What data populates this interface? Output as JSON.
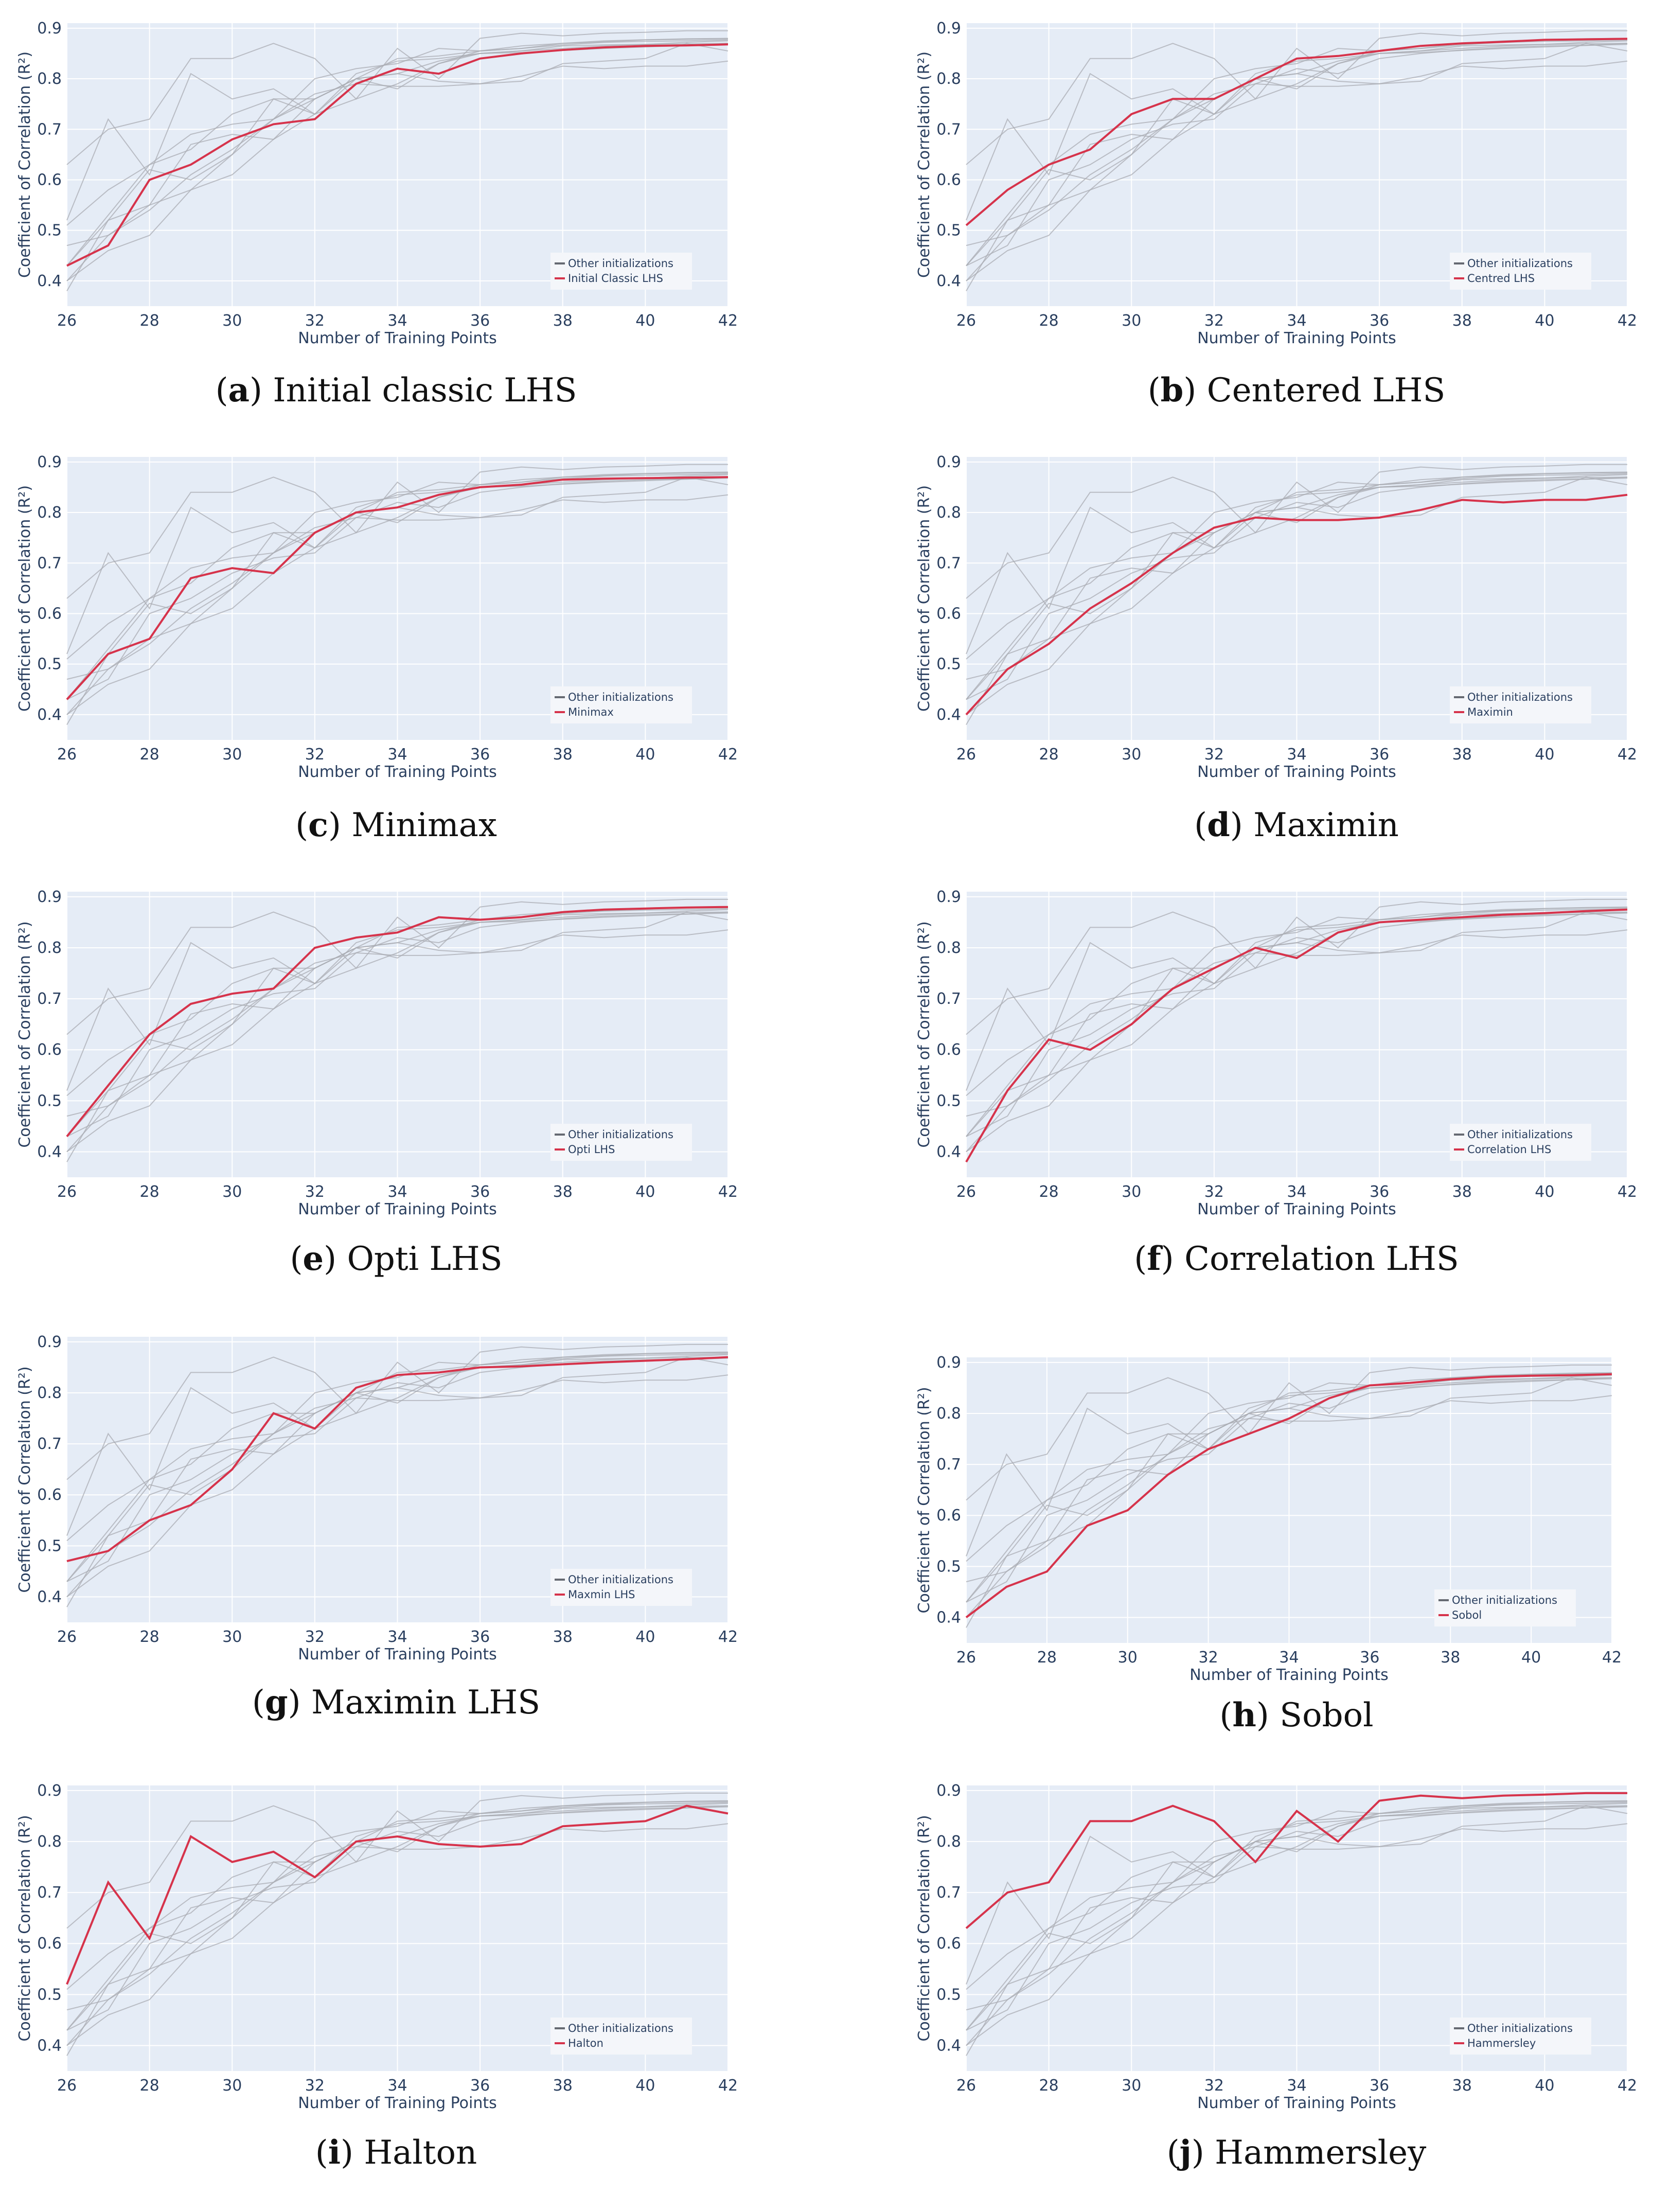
{
  "style": {
    "plot_bg": "#e5ecf6",
    "grid": "#ffffff",
    "other_color": "#a9acb3",
    "highlight_color": "#d6334b",
    "legend_bg": "#f4f6fa",
    "tick_color": "#2a3f5f"
  },
  "common": {
    "x": [
      26,
      27,
      28,
      29,
      30,
      31,
      32,
      33,
      34,
      35,
      36,
      37,
      38,
      39,
      40,
      41,
      42
    ],
    "xlabel": "Number of Training Points",
    "ylabel": "Coefficient of Correlation (R²)",
    "xticks": [
      26,
      28,
      30,
      32,
      34,
      36,
      38,
      40,
      42
    ],
    "yticks": [
      0.4,
      0.5,
      0.6,
      0.7,
      0.8,
      0.9
    ],
    "xlim": [
      26,
      42
    ],
    "ylim": [
      0.35,
      0.91
    ],
    "legend_other": "Other initializations"
  },
  "chart_data": [
    {
      "id": "a",
      "type": "line",
      "letter": "a",
      "caption": "Initial classic LHS",
      "highlight_name": "Initial Classic LHS",
      "values": [
        0.43,
        0.47,
        0.6,
        0.63,
        0.68,
        0.71,
        0.72,
        0.79,
        0.82,
        0.81,
        0.84,
        0.85,
        0.857,
        0.862,
        0.865,
        0.866,
        0.868
      ]
    },
    {
      "id": "b",
      "type": "line",
      "letter": "b",
      "caption": "Centered LHS",
      "highlight_name": "Centred LHS",
      "values": [
        0.51,
        0.58,
        0.63,
        0.66,
        0.73,
        0.76,
        0.76,
        0.8,
        0.84,
        0.845,
        0.855,
        0.865,
        0.87,
        0.873,
        0.877,
        0.878,
        0.879
      ]
    },
    {
      "id": "c",
      "type": "line",
      "letter": "c",
      "caption": "Minimax",
      "highlight_name": "Minimax",
      "values": [
        0.43,
        0.52,
        0.55,
        0.67,
        0.69,
        0.68,
        0.76,
        0.8,
        0.81,
        0.835,
        0.85,
        0.855,
        0.865,
        0.867,
        0.868,
        0.869,
        0.87
      ]
    },
    {
      "id": "d",
      "type": "line",
      "letter": "d",
      "caption": "Maximin",
      "highlight_name": "Maximin",
      "values": [
        0.4,
        0.49,
        0.54,
        0.61,
        0.66,
        0.72,
        0.77,
        0.79,
        0.785,
        0.785,
        0.79,
        0.805,
        0.825,
        0.82,
        0.825,
        0.825,
        0.835
      ]
    },
    {
      "id": "e",
      "type": "line",
      "letter": "e",
      "caption": "Opti LHS",
      "highlight_name": "Opti LHS",
      "values": [
        0.43,
        0.53,
        0.63,
        0.69,
        0.71,
        0.72,
        0.8,
        0.82,
        0.83,
        0.86,
        0.855,
        0.86,
        0.87,
        0.875,
        0.877,
        0.879,
        0.88
      ]
    },
    {
      "id": "f",
      "type": "line",
      "letter": "f",
      "caption": "Correlation LHS",
      "highlight_name": "Correlation LHS",
      "values": [
        0.38,
        0.52,
        0.62,
        0.6,
        0.65,
        0.72,
        0.76,
        0.8,
        0.78,
        0.83,
        0.85,
        0.855,
        0.86,
        0.865,
        0.868,
        0.872,
        0.875
      ]
    },
    {
      "id": "g",
      "type": "line",
      "letter": "g",
      "caption": "Maximin LHS",
      "highlight_name": "Maxmin LHS",
      "values": [
        0.47,
        0.49,
        0.55,
        0.58,
        0.65,
        0.76,
        0.73,
        0.81,
        0.835,
        0.84,
        0.85,
        0.852,
        0.856,
        0.86,
        0.863,
        0.866,
        0.87
      ]
    },
    {
      "id": "h",
      "type": "line",
      "letter": "h",
      "caption": "Sobol",
      "highlight_name": "Sobol",
      "values": [
        0.4,
        0.46,
        0.49,
        0.58,
        0.61,
        0.68,
        0.73,
        0.76,
        0.79,
        0.83,
        0.855,
        0.86,
        0.867,
        0.872,
        0.874,
        0.875,
        0.877
      ]
    },
    {
      "id": "i",
      "type": "line",
      "letter": "i",
      "caption": "Halton",
      "highlight_name": "Halton",
      "values": [
        0.52,
        0.72,
        0.61,
        0.81,
        0.76,
        0.78,
        0.73,
        0.8,
        0.81,
        0.795,
        0.79,
        0.795,
        0.83,
        0.835,
        0.84,
        0.87,
        0.855
      ]
    },
    {
      "id": "j",
      "type": "line",
      "letter": "j",
      "caption": "Hammersley",
      "highlight_name": "Hammersley",
      "values": [
        0.63,
        0.7,
        0.72,
        0.84,
        0.84,
        0.87,
        0.84,
        0.76,
        0.86,
        0.8,
        0.88,
        0.89,
        0.885,
        0.89,
        0.892,
        0.895,
        0.895
      ]
    }
  ]
}
